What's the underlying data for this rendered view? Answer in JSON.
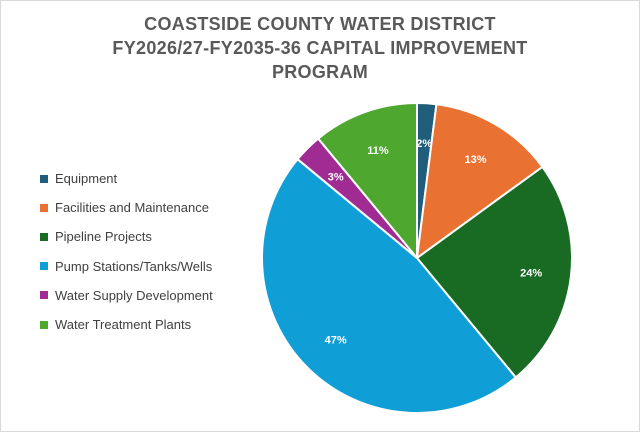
{
  "chart_data": {
    "type": "pie",
    "title_lines": [
      "COASTSIDE COUNTY WATER DISTRICT",
      "FY2026/27-FY2035-36 CAPITAL IMPROVEMENT",
      "PROGRAM"
    ],
    "legend_position": "left",
    "slices": [
      {
        "name": "Equipment",
        "value": 2,
        "label": "2%",
        "color": "#1f5d7a"
      },
      {
        "name": "Facilities and Maintenance",
        "value": 13,
        "label": "13%",
        "color": "#e97132"
      },
      {
        "name": "Pipeline Projects",
        "value": 24,
        "label": "24%",
        "color": "#196b24"
      },
      {
        "name": "Pump Stations/Tanks/Wells",
        "value": 47,
        "label": "47%",
        "color": "#0f9ed5"
      },
      {
        "name": "Water Supply Development",
        "value": 3,
        "label": "3%",
        "color": "#a02b93"
      },
      {
        "name": "Water Treatment Plants",
        "value": 11,
        "label": "11%",
        "color": "#4ea72e"
      }
    ]
  }
}
